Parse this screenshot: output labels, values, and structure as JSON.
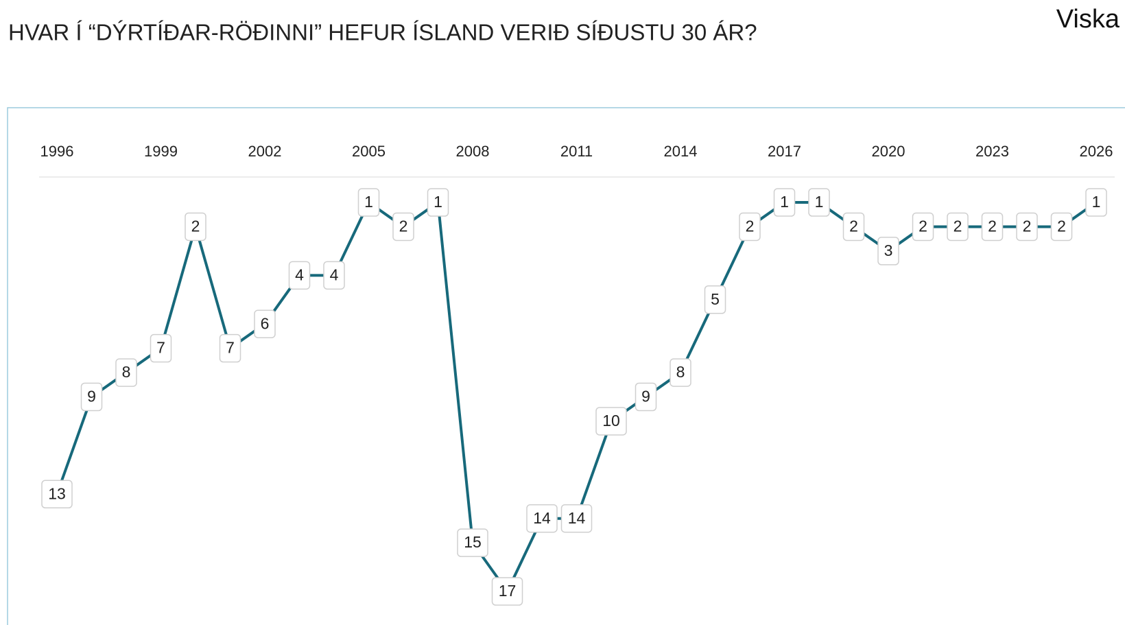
{
  "brand": "Viska",
  "chart_data": {
    "type": "line",
    "title": "HVAR Í “DÝRTÍÐAR-RÖÐINNI” HEFUR ÍSLAND VERIÐ SÍÐUSTU 30 ÁR?",
    "x": [
      1996,
      1997,
      1998,
      1999,
      2000,
      2001,
      2002,
      2003,
      2004,
      2005,
      2006,
      2007,
      2008,
      2009,
      2010,
      2011,
      2012,
      2013,
      2014,
      2015,
      2016,
      2017,
      2018,
      2019,
      2020,
      2021,
      2022,
      2023,
      2024,
      2025,
      2026
    ],
    "values": [
      13,
      9,
      8,
      7,
      2,
      7,
      6,
      4,
      4,
      1,
      2,
      1,
      15,
      17,
      14,
      14,
      10,
      9,
      8,
      5,
      2,
      1,
      1,
      2,
      3,
      2,
      2,
      2,
      2,
      2,
      1
    ],
    "color": "#17697b",
    "xlim": [
      1996,
      2026
    ],
    "xticks": [
      1996,
      1999,
      2002,
      2005,
      2008,
      2011,
      2014,
      2017,
      2020,
      2023,
      2026
    ],
    "ylim": [
      1,
      17
    ],
    "y_inverted": true
  }
}
